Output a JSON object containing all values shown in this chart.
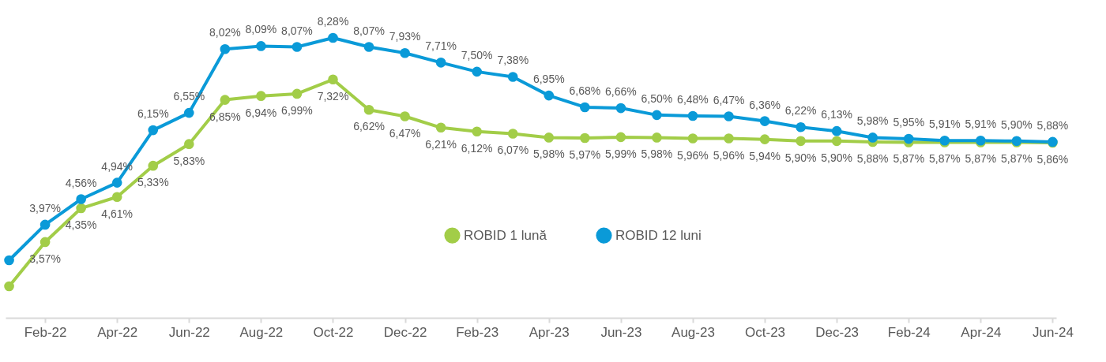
{
  "chart_data": {
    "type": "line",
    "categories": [
      null,
      "Feb-22",
      null,
      "Apr-22",
      null,
      "Jun-22",
      null,
      "Aug-22",
      null,
      "Oct-22",
      null,
      "Dec-22",
      null,
      "Feb-23",
      null,
      "Apr-23",
      null,
      "Jun-23",
      null,
      "Aug-23",
      null,
      "Oct-23",
      null,
      "Dec-23",
      null,
      "Feb-24",
      null,
      "Apr-24",
      null,
      "Jun-24"
    ],
    "series": [
      {
        "name": "ROBID 1 lună",
        "color": "#a2cd48",
        "values": [
          2.55,
          3.57,
          4.35,
          4.61,
          5.33,
          5.83,
          6.85,
          6.94,
          6.99,
          7.32,
          6.62,
          6.47,
          6.21,
          6.12,
          6.07,
          5.98,
          5.97,
          5.99,
          5.98,
          5.96,
          5.96,
          5.94,
          5.9,
          5.9,
          5.88,
          5.87,
          5.87,
          5.87,
          5.87,
          5.86
        ],
        "value_labels": [
          null,
          "3,57%",
          "4,35%",
          "4,61%",
          "5,33%",
          "5,83%",
          "6,85%",
          "6,94%",
          "6,99%",
          "7,32%",
          "6,62%",
          "6,47%",
          "6,21%",
          "6,12%",
          "6,07%",
          "5,98%",
          "5,97%",
          "5,99%",
          "5,98%",
          "5,96%",
          "5,96%",
          "5,94%",
          "5,90%",
          "5,90%",
          "5,88%",
          "5,87%",
          "5,87%",
          "5,87%",
          "5,87%",
          "5,86%"
        ]
      },
      {
        "name": "ROBID 12 luni",
        "color": "#0a9ad8",
        "values": [
          3.15,
          3.97,
          4.56,
          4.94,
          6.15,
          6.55,
          8.02,
          8.09,
          8.07,
          8.28,
          8.07,
          7.93,
          7.71,
          7.5,
          7.38,
          6.95,
          6.68,
          6.66,
          6.5,
          6.48,
          6.47,
          6.36,
          6.22,
          6.13,
          5.98,
          5.95,
          5.91,
          5.91,
          5.9,
          5.88
        ],
        "value_labels": [
          null,
          "3,97%",
          "4,56%",
          "4,94%",
          "6,15%",
          "6,55%",
          "8,02%",
          "8,09%",
          "8,07%",
          "8,28%",
          "8,07%",
          "7,93%",
          "7,71%",
          "7,50%",
          "7,38%",
          "6,95%",
          "6,68%",
          "6,66%",
          "6,50%",
          "6,48%",
          "6,47%",
          "6,36%",
          "6,22%",
          "6,13%",
          "5,98%",
          "5,95%",
          "5,91%",
          "5,91%",
          "5,90%",
          "5,88%"
        ]
      }
    ],
    "marker": "circle",
    "legend": "bottom",
    "grid": false
  }
}
